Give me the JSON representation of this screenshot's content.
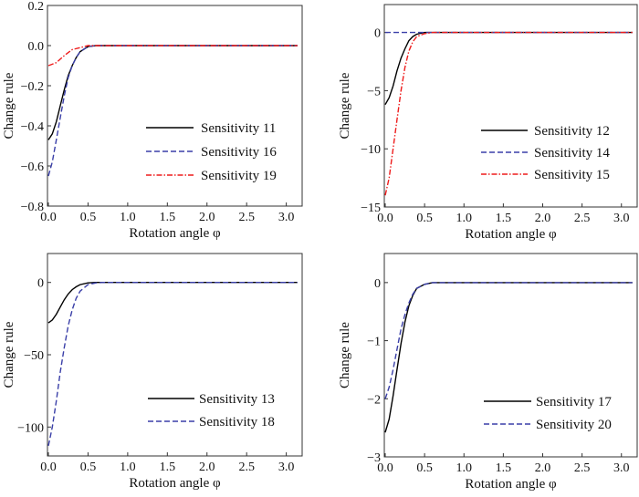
{
  "chart_data": [
    {
      "type": "line",
      "xlabel": "Rotation angle φ",
      "ylabel": "Change rule",
      "xlim": [
        0,
        3.2
      ],
      "ylim": [
        -0.8,
        0.2
      ],
      "xticks": [
        "0.0",
        "0.5",
        "1.0",
        "1.5",
        "2.0",
        "2.5",
        "3.0"
      ],
      "yticks": [
        "0.2",
        "0.0",
        "−0.2",
        "−0.4",
        "−0.6",
        "−0.8"
      ],
      "ytick_values": [
        0.2,
        0.0,
        -0.2,
        -0.4,
        -0.6,
        -0.8
      ],
      "legend_position": "right",
      "series": [
        {
          "name": "Sensitivity 11",
          "color": "#000000",
          "dash": "solid",
          "x": [
            0,
            0.05,
            0.1,
            0.15,
            0.2,
            0.25,
            0.3,
            0.35,
            0.4,
            0.5,
            0.6,
            3.14
          ],
          "y": [
            -0.47,
            -0.44,
            -0.38,
            -0.3,
            -0.22,
            -0.15,
            -0.1,
            -0.06,
            -0.03,
            -0.005,
            0,
            0
          ]
        },
        {
          "name": "Sensitivity 16",
          "color": "#3a3fa8",
          "dash": "dashed",
          "x": [
            0,
            0.05,
            0.1,
            0.15,
            0.2,
            0.25,
            0.3,
            0.35,
            0.4,
            0.5,
            0.6,
            3.14
          ],
          "y": [
            -0.65,
            -0.58,
            -0.47,
            -0.36,
            -0.25,
            -0.16,
            -0.1,
            -0.06,
            -0.03,
            -0.005,
            0,
            0
          ]
        },
        {
          "name": "Sensitivity 19",
          "color": "#ee1c1c",
          "dash": "dashdot",
          "x": [
            0,
            0.1,
            0.2,
            0.3,
            0.4,
            0.5,
            3.14
          ],
          "y": [
            -0.1,
            -0.085,
            -0.05,
            -0.02,
            -0.01,
            0,
            0
          ]
        }
      ]
    },
    {
      "type": "line",
      "xlabel": "Rotation angle φ",
      "ylabel": "Change rule",
      "xlim": [
        0,
        3.2
      ],
      "ylim": [
        -15,
        2.4
      ],
      "xticks": [
        "0.0",
        "0.5",
        "1.0",
        "1.5",
        "2.0",
        "2.5",
        "3.0"
      ],
      "yticks": [
        "0",
        "−5",
        "−10",
        "−15"
      ],
      "ytick_values": [
        0,
        -5,
        -10,
        -15
      ],
      "legend_position": "right",
      "series": [
        {
          "name": "Sensitivity 12",
          "color": "#000000",
          "dash": "solid",
          "x": [
            0,
            0.05,
            0.1,
            0.15,
            0.2,
            0.25,
            0.3,
            0.35,
            0.4,
            0.5,
            0.6,
            3.14
          ],
          "y": [
            -6.2,
            -5.6,
            -4.6,
            -3.3,
            -2.2,
            -1.4,
            -0.7,
            -0.35,
            -0.15,
            0,
            0,
            0
          ]
        },
        {
          "name": "Sensitivity 14",
          "color": "#3a3fa8",
          "dash": "dashed",
          "x": [
            0,
            3.14
          ],
          "y": [
            0,
            0
          ]
        },
        {
          "name": "Sensitivity 15",
          "color": "#ee1c1c",
          "dash": "dashdot",
          "x": [
            0,
            0.05,
            0.1,
            0.15,
            0.2,
            0.25,
            0.3,
            0.35,
            0.4,
            0.5,
            0.6,
            3.14
          ],
          "y": [
            -14,
            -12.5,
            -10,
            -7.5,
            -5,
            -3,
            -1.6,
            -0.8,
            -0.35,
            -0.1,
            0,
            0
          ]
        }
      ]
    },
    {
      "type": "line",
      "xlabel": "Rotation angle φ",
      "ylabel": "Change rule",
      "xlim": [
        0,
        3.2
      ],
      "ylim": [
        -120,
        20
      ],
      "xticks": [
        "0.0",
        "0.5",
        "1.0",
        "1.5",
        "2.0",
        "2.5",
        "3.0"
      ],
      "yticks": [
        "0",
        "−50",
        "−100"
      ],
      "ytick_values": [
        0,
        -50,
        -100
      ],
      "legend_position": "right",
      "series": [
        {
          "name": "Sensitivity 13",
          "color": "#000000",
          "dash": "solid",
          "x": [
            0,
            0.05,
            0.1,
            0.15,
            0.2,
            0.25,
            0.3,
            0.35,
            0.4,
            0.5,
            0.6,
            3.14
          ],
          "y": [
            -28,
            -26,
            -22,
            -17,
            -12,
            -8,
            -5,
            -3,
            -1.5,
            -0.3,
            0,
            0
          ]
        },
        {
          "name": "Sensitivity 18",
          "color": "#3a3fa8",
          "dash": "dashed",
          "x": [
            0,
            0.05,
            0.1,
            0.15,
            0.2,
            0.25,
            0.3,
            0.35,
            0.4,
            0.5,
            0.6,
            0.7,
            3.14
          ],
          "y": [
            -113,
            -100,
            -82,
            -62,
            -45,
            -30,
            -19,
            -11,
            -6,
            -1.5,
            -0.3,
            0,
            0
          ]
        }
      ]
    },
    {
      "type": "line",
      "xlabel": "Rotation angle φ",
      "ylabel": "Change rule",
      "xlim": [
        0,
        3.2
      ],
      "ylim": [
        -3,
        0.5
      ],
      "xticks": [
        "0.0",
        "0.5",
        "1.0",
        "1.5",
        "2.0",
        "2.5",
        "3.0"
      ],
      "yticks": [
        "0",
        "−1",
        "−2",
        "−3"
      ],
      "ytick_values": [
        0,
        -1,
        -2,
        -3
      ],
      "legend_position": "right",
      "series": [
        {
          "name": "Sensitivity 17",
          "color": "#000000",
          "dash": "solid",
          "x": [
            0,
            0.05,
            0.1,
            0.15,
            0.2,
            0.25,
            0.3,
            0.35,
            0.4,
            0.5,
            0.6,
            3.14
          ],
          "y": [
            -2.58,
            -2.35,
            -1.95,
            -1.5,
            -1.05,
            -0.68,
            -0.4,
            -0.22,
            -0.1,
            -0.03,
            0,
            0
          ]
        },
        {
          "name": "Sensitivity 20",
          "color": "#3a3fa8",
          "dash": "dashed",
          "x": [
            0,
            0.05,
            0.1,
            0.15,
            0.2,
            0.25,
            0.3,
            0.35,
            0.4,
            0.5,
            0.6,
            3.14
          ],
          "y": [
            -2.0,
            -1.8,
            -1.5,
            -1.15,
            -0.8,
            -0.55,
            -0.35,
            -0.2,
            -0.1,
            -0.03,
            0,
            0
          ]
        }
      ]
    }
  ]
}
